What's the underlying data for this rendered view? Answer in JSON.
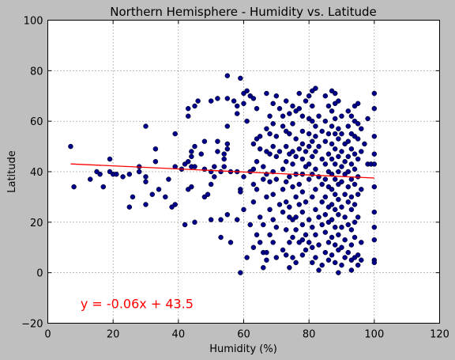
{
  "chart_data": {
    "type": "scatter",
    "title": "Northern Hemisphere - Humidity vs. Latitude",
    "xlabel": "Humidity (%)",
    "ylabel": "Latitude",
    "xlim": [
      0,
      120
    ],
    "ylim": [
      -20,
      100
    ],
    "xticks": [
      "0",
      "20",
      "40",
      "60",
      "80",
      "100",
      "120"
    ],
    "yticks": [
      "−20",
      "0",
      "20",
      "40",
      "60",
      "80",
      "100"
    ],
    "grid": true,
    "marker_color": "#00008b",
    "regression_color": "#ff0000",
    "regression": {
      "slope": -0.06,
      "intercept": 43.5,
      "x_range": [
        7,
        100
      ]
    },
    "annotation": {
      "text": "y = -0.06x + 43.5",
      "x": 10,
      "y": -14
    },
    "points": [
      [
        7,
        50
      ],
      [
        8,
        34
      ],
      [
        13,
        37
      ],
      [
        15,
        40
      ],
      [
        16,
        39
      ],
      [
        17,
        34
      ],
      [
        19,
        40
      ],
      [
        19,
        45
      ],
      [
        20,
        39
      ],
      [
        21,
        39
      ],
      [
        23,
        38
      ],
      [
        25,
        39
      ],
      [
        25,
        26
      ],
      [
        26,
        30
      ],
      [
        28,
        42
      ],
      [
        28,
        40
      ],
      [
        30,
        58
      ],
      [
        30,
        38
      ],
      [
        30,
        36
      ],
      [
        30,
        27
      ],
      [
        32,
        31
      ],
      [
        33,
        49
      ],
      [
        33,
        44
      ],
      [
        34,
        33
      ],
      [
        36,
        30
      ],
      [
        37,
        37
      ],
      [
        38,
        26
      ],
      [
        39,
        27
      ],
      [
        39,
        42
      ],
      [
        39,
        55
      ],
      [
        41,
        41
      ],
      [
        42,
        19
      ],
      [
        42,
        43
      ],
      [
        43,
        44
      ],
      [
        43,
        62
      ],
      [
        43,
        65
      ],
      [
        43,
        33
      ],
      [
        44,
        42
      ],
      [
        44,
        46
      ],
      [
        44,
        48
      ],
      [
        44,
        34
      ],
      [
        45,
        50
      ],
      [
        45,
        42
      ],
      [
        45,
        20
      ],
      [
        45,
        66
      ],
      [
        46,
        68
      ],
      [
        47,
        47
      ],
      [
        48,
        30
      ],
      [
        48,
        41
      ],
      [
        48,
        52
      ],
      [
        49,
        31
      ],
      [
        50,
        68
      ],
      [
        50,
        40
      ],
      [
        50,
        21
      ],
      [
        50,
        35
      ],
      [
        51,
        38
      ],
      [
        51,
        42
      ],
      [
        52,
        69
      ],
      [
        52,
        48
      ],
      [
        52,
        52
      ],
      [
        53,
        40
      ],
      [
        53,
        21
      ],
      [
        53,
        14
      ],
      [
        54,
        47
      ],
      [
        54,
        42
      ],
      [
        54,
        45
      ],
      [
        55,
        78
      ],
      [
        55,
        58
      ],
      [
        55,
        51
      ],
      [
        55,
        49
      ],
      [
        55,
        23
      ],
      [
        55,
        69
      ],
      [
        56,
        12
      ],
      [
        56,
        40
      ],
      [
        57,
        68
      ],
      [
        58,
        66
      ],
      [
        58,
        21
      ],
      [
        58,
        63
      ],
      [
        58,
        40
      ],
      [
        59,
        77
      ],
      [
        59,
        33
      ],
      [
        59,
        0
      ],
      [
        59,
        32
      ],
      [
        60,
        71
      ],
      [
        60,
        67
      ],
      [
        60,
        38
      ],
      [
        60,
        25
      ],
      [
        61,
        72
      ],
      [
        61,
        60
      ],
      [
        61,
        6
      ],
      [
        62,
        19
      ],
      [
        62,
        70
      ],
      [
        62,
        40
      ],
      [
        63,
        69
      ],
      [
        63,
        51
      ],
      [
        63,
        41
      ],
      [
        63,
        35
      ],
      [
        63,
        28
      ],
      [
        63,
        10
      ],
      [
        64,
        65
      ],
      [
        64,
        53
      ],
      [
        64,
        44
      ],
      [
        64,
        33
      ],
      [
        64,
        15
      ],
      [
        65,
        54
      ],
      [
        65,
        49
      ],
      [
        65,
        22
      ],
      [
        65,
        12
      ],
      [
        66,
        42
      ],
      [
        66,
        37
      ],
      [
        66,
        19
      ],
      [
        66,
        8
      ],
      [
        66,
        2
      ],
      [
        67,
        71
      ],
      [
        67,
        57
      ],
      [
        67,
        48
      ],
      [
        67,
        39
      ],
      [
        67,
        30
      ],
      [
        67,
        8
      ],
      [
        67,
        5
      ],
      [
        68,
        62
      ],
      [
        68,
        55
      ],
      [
        68,
        47
      ],
      [
        68,
        36
      ],
      [
        68,
        25
      ],
      [
        68,
        15
      ],
      [
        69,
        67
      ],
      [
        69,
        59
      ],
      [
        69,
        50
      ],
      [
        69,
        40
      ],
      [
        69,
        31
      ],
      [
        69,
        21
      ],
      [
        69,
        12
      ],
      [
        70,
        70
      ],
      [
        70,
        54
      ],
      [
        70,
        46
      ],
      [
        70,
        37
      ],
      [
        70,
        18
      ],
      [
        70,
        6
      ],
      [
        71,
        65
      ],
      [
        71,
        48
      ],
      [
        71,
        27
      ],
      [
        72,
        62
      ],
      [
        72,
        58
      ],
      [
        72,
        41
      ],
      [
        72,
        33
      ],
      [
        72,
        24
      ],
      [
        72,
        9
      ],
      [
        73,
        68
      ],
      [
        73,
        56
      ],
      [
        73,
        50
      ],
      [
        73,
        44
      ],
      [
        73,
        36
      ],
      [
        73,
        28
      ],
      [
        73,
        17
      ],
      [
        73,
        7
      ],
      [
        74,
        63
      ],
      [
        74,
        55
      ],
      [
        74,
        47
      ],
      [
        74,
        38
      ],
      [
        74,
        26
      ],
      [
        74,
        22
      ],
      [
        74,
        12
      ],
      [
        74,
        2
      ],
      [
        75,
        66
      ],
      [
        75,
        59
      ],
      [
        75,
        48
      ],
      [
        75,
        43
      ],
      [
        75,
        34
      ],
      [
        75,
        21
      ],
      [
        75,
        14
      ],
      [
        75,
        6
      ],
      [
        76,
        64
      ],
      [
        76,
        53
      ],
      [
        76,
        46
      ],
      [
        76,
        39
      ],
      [
        76,
        30
      ],
      [
        76,
        22
      ],
      [
        76,
        17
      ],
      [
        76,
        4
      ],
      [
        77,
        71
      ],
      [
        77,
        65
      ],
      [
        77,
        49
      ],
      [
        77,
        35
      ],
      [
        77,
        27
      ],
      [
        77,
        12
      ],
      [
        78,
        62
      ],
      [
        78,
        56
      ],
      [
        78,
        51
      ],
      [
        78,
        45
      ],
      [
        78,
        39
      ],
      [
        78,
        32
      ],
      [
        78,
        24
      ],
      [
        78,
        19
      ],
      [
        78,
        13
      ],
      [
        78,
        7
      ],
      [
        79,
        68
      ],
      [
        79,
        48
      ],
      [
        79,
        42
      ],
      [
        79,
        28
      ],
      [
        79,
        15
      ],
      [
        79,
        9
      ],
      [
        80,
        70
      ],
      [
        80,
        61
      ],
      [
        80,
        55
      ],
      [
        80,
        50
      ],
      [
        80,
        43
      ],
      [
        80,
        37
      ],
      [
        80,
        21
      ],
      [
        80,
        12
      ],
      [
        81,
        72
      ],
      [
        81,
        66
      ],
      [
        81,
        60
      ],
      [
        81,
        52
      ],
      [
        81,
        46
      ],
      [
        81,
        39
      ],
      [
        81,
        30
      ],
      [
        81,
        18
      ],
      [
        81,
        10
      ],
      [
        81,
        4
      ],
      [
        82,
        73
      ],
      [
        82,
        58
      ],
      [
        82,
        54
      ],
      [
        82,
        48
      ],
      [
        82,
        41
      ],
      [
        82,
        33
      ],
      [
        82,
        25
      ],
      [
        82,
        15
      ],
      [
        82,
        6
      ],
      [
        83,
        62
      ],
      [
        83,
        50
      ],
      [
        83,
        38
      ],
      [
        83,
        22
      ],
      [
        83,
        11
      ],
      [
        83,
        1
      ],
      [
        84,
        56
      ],
      [
        84,
        45
      ],
      [
        84,
        35
      ],
      [
        84,
        28
      ],
      [
        84,
        19
      ],
      [
        84,
        3
      ],
      [
        85,
        70
      ],
      [
        85,
        60
      ],
      [
        85,
        52
      ],
      [
        85,
        43
      ],
      [
        85,
        37
      ],
      [
        85,
        30
      ],
      [
        85,
        23
      ],
      [
        85,
        16
      ],
      [
        85,
        8
      ],
      [
        86,
        66
      ],
      [
        86,
        55
      ],
      [
        86,
        47
      ],
      [
        86,
        40
      ],
      [
        86,
        34
      ],
      [
        86,
        26
      ],
      [
        86,
        20
      ],
      [
        86,
        12
      ],
      [
        86,
        5
      ],
      [
        87,
        72
      ],
      [
        87,
        64
      ],
      [
        87,
        58
      ],
      [
        87,
        51
      ],
      [
        87,
        45
      ],
      [
        87,
        39
      ],
      [
        87,
        33
      ],
      [
        87,
        27
      ],
      [
        87,
        21
      ],
      [
        87,
        14
      ],
      [
        87,
        7
      ],
      [
        88,
        71
      ],
      [
        88,
        67
      ],
      [
        88,
        61
      ],
      [
        88,
        55
      ],
      [
        88,
        49
      ],
      [
        88,
        43
      ],
      [
        88,
        37
      ],
      [
        88,
        31
      ],
      [
        88,
        25
      ],
      [
        88,
        18
      ],
      [
        88,
        11
      ],
      [
        88,
        4
      ],
      [
        89,
        68
      ],
      [
        89,
        57
      ],
      [
        89,
        53
      ],
      [
        89,
        46
      ],
      [
        89,
        40
      ],
      [
        89,
        35
      ],
      [
        89,
        29
      ],
      [
        89,
        23
      ],
      [
        89,
        15
      ],
      [
        89,
        9
      ],
      [
        89,
        0
      ],
      [
        90,
        62
      ],
      [
        90,
        55
      ],
      [
        90,
        48
      ],
      [
        90,
        42
      ],
      [
        90,
        36
      ],
      [
        90,
        26
      ],
      [
        90,
        18
      ],
      [
        90,
        10
      ],
      [
        90,
        3
      ],
      [
        91,
        51
      ],
      [
        91,
        44
      ],
      [
        91,
        39
      ],
      [
        91,
        31
      ],
      [
        91,
        22
      ],
      [
        91,
        13
      ],
      [
        91,
        6
      ],
      [
        92,
        64
      ],
      [
        92,
        58
      ],
      [
        92,
        52
      ],
      [
        92,
        46
      ],
      [
        92,
        40
      ],
      [
        92,
        34
      ],
      [
        92,
        28
      ],
      [
        92,
        19
      ],
      [
        92,
        8
      ],
      [
        93,
        62
      ],
      [
        93,
        55
      ],
      [
        93,
        49
      ],
      [
        93,
        43
      ],
      [
        93,
        37
      ],
      [
        93,
        30
      ],
      [
        93,
        25
      ],
      [
        93,
        17
      ],
      [
        93,
        11
      ],
      [
        93,
        5
      ],
      [
        93,
        1
      ],
      [
        94,
        66
      ],
      [
        94,
        60
      ],
      [
        94,
        54
      ],
      [
        94,
        47
      ],
      [
        94,
        41
      ],
      [
        94,
        35
      ],
      [
        94,
        27
      ],
      [
        94,
        20
      ],
      [
        94,
        14
      ],
      [
        94,
        6
      ],
      [
        95,
        67
      ],
      [
        95,
        59
      ],
      [
        95,
        53
      ],
      [
        95,
        45
      ],
      [
        95,
        38
      ],
      [
        95,
        31
      ],
      [
        95,
        22
      ],
      [
        95,
        7
      ],
      [
        95,
        3
      ],
      [
        96,
        57
      ],
      [
        96,
        48
      ],
      [
        96,
        33
      ],
      [
        96,
        12
      ],
      [
        96,
        5
      ],
      [
        97,
        51
      ],
      [
        98,
        61
      ],
      [
        98,
        43
      ],
      [
        99,
        43
      ],
      [
        100,
        71
      ],
      [
        100,
        65
      ],
      [
        100,
        54
      ],
      [
        100,
        47
      ],
      [
        100,
        43
      ],
      [
        100,
        34
      ],
      [
        100,
        24
      ],
      [
        100,
        18
      ],
      [
        100,
        13
      ],
      [
        100,
        5
      ],
      [
        100,
        4
      ]
    ]
  }
}
